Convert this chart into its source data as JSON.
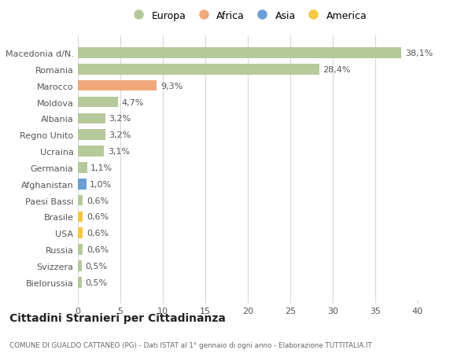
{
  "countries": [
    "Macedonia d/N.",
    "Romania",
    "Marocco",
    "Moldova",
    "Albania",
    "Regno Unito",
    "Ucraina",
    "Germania",
    "Afghanistan",
    "Paesi Bassi",
    "Brasile",
    "USA",
    "Russia",
    "Svizzera",
    "Bielorussia"
  ],
  "values": [
    38.1,
    28.4,
    9.3,
    4.7,
    3.2,
    3.2,
    3.1,
    1.1,
    1.0,
    0.6,
    0.6,
    0.6,
    0.6,
    0.5,
    0.5
  ],
  "labels": [
    "38,1%",
    "28,4%",
    "9,3%",
    "4,7%",
    "3,2%",
    "3,2%",
    "3,1%",
    "1,1%",
    "1,0%",
    "0,6%",
    "0,6%",
    "0,6%",
    "0,6%",
    "0,5%",
    "0,5%"
  ],
  "continents": [
    "Europa",
    "Europa",
    "Africa",
    "Europa",
    "Europa",
    "Europa",
    "Europa",
    "Europa",
    "Asia",
    "Europa",
    "America",
    "America",
    "Europa",
    "Europa",
    "Europa"
  ],
  "color_europa": "#b5c99a",
  "color_africa": "#f0a87c",
  "color_asia": "#6b9fd4",
  "color_america": "#f5c842",
  "title": "Cittadini Stranieri per Cittadinanza",
  "subtitle": "COMUNE DI GUALDO CATTANEO (PG) - Dati ISTAT al 1° gennaio di ogni anno - Elaborazione TUTTITALIA.IT",
  "xlim": [
    0,
    40
  ],
  "xticks": [
    0,
    5,
    10,
    15,
    20,
    25,
    30,
    35,
    40
  ],
  "background_color": "#ffffff",
  "grid_color": "#d8d8d8"
}
